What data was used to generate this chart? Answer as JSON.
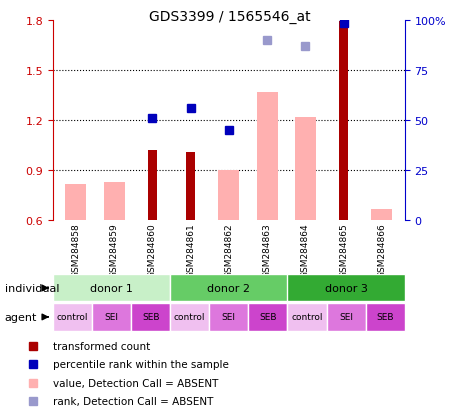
{
  "title": "GDS3399 / 1565546_at",
  "samples": [
    "GSM284858",
    "GSM284859",
    "GSM284860",
    "GSM284861",
    "GSM284862",
    "GSM284863",
    "GSM284864",
    "GSM284865",
    "GSM284866"
  ],
  "ylim_left": [
    0.6,
    1.8
  ],
  "ylim_right": [
    0,
    100
  ],
  "yticks_left": [
    0.6,
    0.9,
    1.2,
    1.5,
    1.8
  ],
  "yticks_right": [
    0,
    25,
    50,
    75,
    100
  ],
  "red_bars": [
    null,
    null,
    1.02,
    1.01,
    null,
    null,
    null,
    1.79,
    null
  ],
  "pink_bars": [
    0.82,
    0.83,
    null,
    null,
    0.9,
    1.37,
    1.22,
    null,
    0.67
  ],
  "blue_squares": [
    null,
    null,
    1.21,
    1.27,
    1.14,
    null,
    null,
    1.78,
    null
  ],
  "light_blue_squares": [
    null,
    null,
    null,
    null,
    null,
    1.68,
    1.64,
    null,
    null
  ],
  "donors": [
    {
      "label": "donor 1",
      "start": 0,
      "end": 3,
      "color": "#c8f0c8"
    },
    {
      "label": "donor 2",
      "start": 3,
      "end": 6,
      "color": "#66cc66"
    },
    {
      "label": "donor 3",
      "start": 6,
      "end": 9,
      "color": "#33aa33"
    }
  ],
  "agents": [
    "control",
    "SEI",
    "SEB",
    "control",
    "SEI",
    "SEB",
    "control",
    "SEI",
    "SEB"
  ],
  "agent_colors": [
    "#f0c0f0",
    "#dd77dd",
    "#cc44cc",
    "#f0c0f0",
    "#dd77dd",
    "#cc44cc",
    "#f0c0f0",
    "#dd77dd",
    "#cc44cc"
  ],
  "bar_width": 0.55,
  "red_bar_width": 0.25,
  "red_color": "#aa0000",
  "pink_color": "#ffb0b0",
  "blue_color": "#0000bb",
  "light_blue_color": "#9999cc",
  "left_axis_color": "#cc0000",
  "right_axis_color": "#0000cc",
  "gray_bg": "#cccccc",
  "white": "#ffffff",
  "legend_items": [
    {
      "color": "#aa0000",
      "label": "transformed count"
    },
    {
      "color": "#0000bb",
      "label": "percentile rank within the sample"
    },
    {
      "color": "#ffb0b0",
      "label": "value, Detection Call = ABSENT"
    },
    {
      "color": "#9999cc",
      "label": "rank, Detection Call = ABSENT"
    }
  ]
}
